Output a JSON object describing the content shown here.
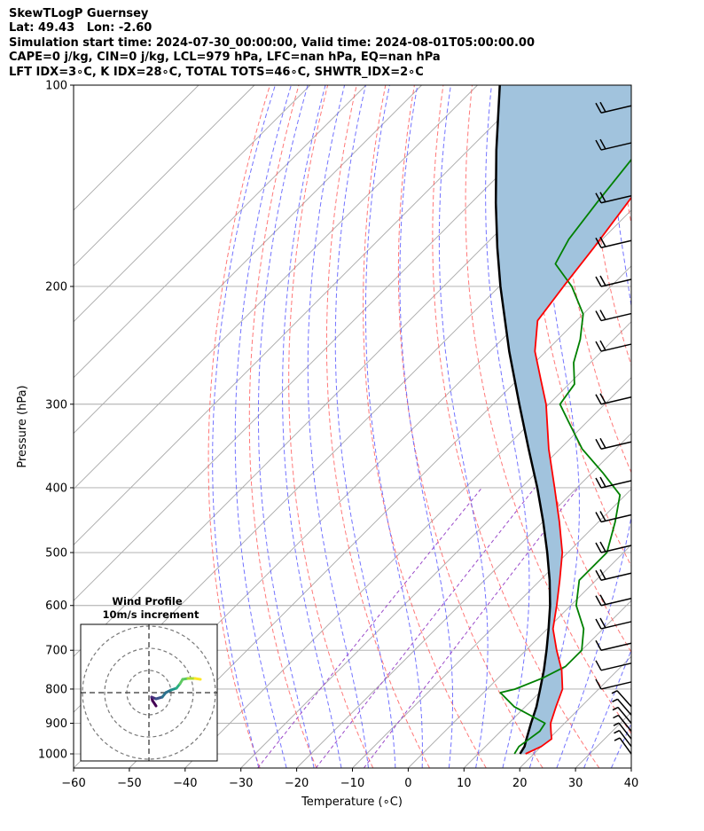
{
  "header": {
    "line1": "SkewTLogP Guernsey",
    "line2": "Lat: 49.43   Lon: -2.60",
    "line3": "Simulation start time: 2024-07-30_00:00:00, Valid time: 2024-08-01T05:00:00.00",
    "line4": "CAPE=0 j/kg, CIN=0 j/kg, LCL=979 hPa, LFC=nan hPa, EQ=nan hPa",
    "line5": "LFT IDX=3∘C, K IDX=28∘C, TOTAL TOTS=46∘C, SHWTR_IDX=2∘C"
  },
  "colors": {
    "temperature": "#ff0000",
    "dewpoint": "#008000",
    "parcel": "#000000",
    "shade": "#a1c3dd",
    "dry_adiabat": "#ff6060",
    "moist_adiabat": "#5a5aff",
    "mixing_ratio": "#9a49c9",
    "isotherm": "#a8a8a8"
  },
  "chart_data": [
    {
      "type": "line",
      "title": "",
      "xlabel": "Temperature (∘C)",
      "ylabel": "Pressure (hPa)",
      "xlim": [
        -60,
        40
      ],
      "ylim": [
        1050,
        100
      ],
      "y_scale": "log",
      "skew": "skew-T",
      "grid": true,
      "xticks": [
        -60,
        -50,
        -40,
        -30,
        -20,
        -10,
        0,
        10,
        20,
        30,
        40
      ],
      "yticks": [
        100,
        200,
        300,
        400,
        500,
        600,
        700,
        800,
        900,
        1000
      ],
      "series": [
        {
          "role": "temperature",
          "p": [
            1000,
            975,
            950,
            925,
            900,
            850,
            800,
            750,
            700,
            650,
            600,
            550,
            500,
            450,
            400,
            350,
            300,
            275,
            250,
            225,
            200,
            175,
            150,
            125,
            110,
            100
          ],
          "t": [
            18.5,
            20.0,
            20.5,
            19.0,
            17.5,
            15.5,
            13.5,
            10.0,
            5.5,
            1.0,
            -2.5,
            -6.5,
            -11.0,
            -17.0,
            -24.0,
            -32.0,
            -40.5,
            -46.0,
            -52.0,
            -57.0,
            -58.5,
            -60.0,
            -62.0,
            -64.5,
            -64.0,
            -64.0
          ]
        },
        {
          "role": "dewpoint",
          "p": [
            1000,
            975,
            950,
            925,
            900,
            850,
            810,
            800,
            770,
            740,
            700,
            650,
            600,
            550,
            500,
            450,
            410,
            380,
            350,
            320,
            300,
            280,
            260,
            240,
            220,
            200,
            185,
            170,
            150,
            130,
            110,
            100
          ],
          "t": [
            16.5,
            16.0,
            16.5,
            17.0,
            16.5,
            8.0,
            3.0,
            5.0,
            8.0,
            10.0,
            10.0,
            6.5,
            1.0,
            -3.0,
            -3.0,
            -7.0,
            -11.0,
            -18.0,
            -26.0,
            -33.0,
            -38.0,
            -39.0,
            -43.0,
            -46.0,
            -50.0,
            -57.0,
            -64.0,
            -66.0,
            -67.5,
            -69.0,
            -71.0,
            -73.0
          ]
        },
        {
          "role": "parcel",
          "p": [
            1000,
            975,
            950,
            900,
            850,
            800,
            750,
            700,
            650,
            600,
            550,
            500,
            450,
            400,
            350,
            300,
            250,
            200,
            175,
            150,
            125,
            100
          ],
          "t": [
            17.5,
            17.0,
            16.0,
            14.0,
            12.0,
            9.5,
            6.8,
            3.7,
            0.2,
            -3.7,
            -8.3,
            -13.7,
            -19.9,
            -27.1,
            -35.6,
            -45.3,
            -56.6,
            -69.8,
            -77.3,
            -85.6,
            -95.0,
            -106.0
          ]
        }
      ],
      "wind_barbs": {
        "note": "Wind barbs at right edge",
        "p": [
          1000,
          975,
          950,
          925,
          900,
          875,
          850,
          800,
          750,
          700,
          650,
          600,
          550,
          500,
          450,
          400,
          350,
          300,
          250,
          225,
          200,
          175,
          150,
          125,
          110
        ]
      }
    },
    {
      "type": "line",
      "title": "Wind Profile",
      "subtitle": "10m/s increment"
    }
  ]
}
